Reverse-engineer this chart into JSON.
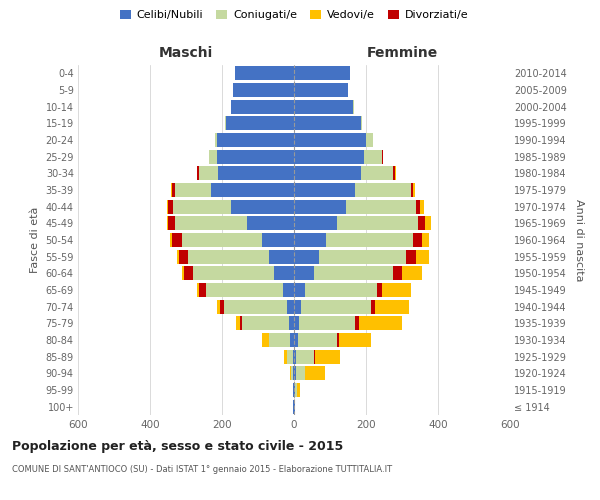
{
  "age_groups": [
    "100+",
    "95-99",
    "90-94",
    "85-89",
    "80-84",
    "75-79",
    "70-74",
    "65-69",
    "60-64",
    "55-59",
    "50-54",
    "45-49",
    "40-44",
    "35-39",
    "30-34",
    "25-29",
    "20-24",
    "15-19",
    "10-14",
    "5-9",
    "0-4"
  ],
  "birth_years": [
    "≤ 1914",
    "1915-1919",
    "1920-1924",
    "1925-1929",
    "1930-1934",
    "1935-1939",
    "1940-1944",
    "1945-1949",
    "1950-1954",
    "1955-1959",
    "1960-1964",
    "1965-1969",
    "1970-1974",
    "1975-1979",
    "1980-1984",
    "1985-1989",
    "1990-1994",
    "1995-1999",
    "2000-2004",
    "2005-2009",
    "2010-2014"
  ],
  "colors": {
    "celibi": "#4472c4",
    "coniugati": "#c5d9a0",
    "vedovi": "#ffc000",
    "divorziati": "#c00000"
  },
  "maschi": {
    "celibi": [
      2,
      2,
      2,
      4,
      10,
      15,
      20,
      30,
      55,
      70,
      90,
      130,
      175,
      230,
      210,
      215,
      215,
      190,
      175,
      170,
      165
    ],
    "coniugati": [
      0,
      0,
      5,
      15,
      60,
      130,
      175,
      215,
      225,
      225,
      220,
      200,
      160,
      100,
      55,
      20,
      5,
      2,
      0,
      0,
      0
    ],
    "vedovi": [
      0,
      0,
      5,
      10,
      20,
      10,
      10,
      5,
      5,
      5,
      5,
      2,
      2,
      2,
      0,
      0,
      0,
      0,
      0,
      0,
      0
    ],
    "divorziati": [
      0,
      0,
      0,
      0,
      0,
      5,
      10,
      20,
      25,
      25,
      30,
      20,
      15,
      10,
      5,
      2,
      0,
      0,
      0,
      0,
      0
    ]
  },
  "femmine": {
    "celibi": [
      2,
      2,
      5,
      5,
      10,
      15,
      20,
      30,
      55,
      70,
      90,
      120,
      145,
      170,
      185,
      195,
      200,
      185,
      165,
      150,
      155
    ],
    "coniugati": [
      0,
      5,
      25,
      50,
      110,
      155,
      195,
      200,
      220,
      240,
      240,
      225,
      195,
      155,
      90,
      50,
      20,
      5,
      2,
      0,
      0
    ],
    "vedovi": [
      2,
      10,
      55,
      70,
      90,
      120,
      95,
      80,
      55,
      35,
      20,
      15,
      10,
      5,
      2,
      0,
      0,
      0,
      0,
      0,
      0
    ],
    "divorziati": [
      0,
      0,
      0,
      2,
      5,
      10,
      10,
      15,
      25,
      30,
      25,
      20,
      10,
      5,
      5,
      2,
      0,
      0,
      0,
      0,
      0
    ]
  },
  "xlim": 600,
  "xlabel_left": "Maschi",
  "xlabel_right": "Femmine",
  "ylabel_left": "Fasce di età",
  "ylabel_right": "Anni di nascita",
  "title": "Popolazione per età, sesso e stato civile - 2015",
  "subtitle": "COMUNE DI SANT'ANTIOCO (SU) - Dati ISTAT 1° gennaio 2015 - Elaborazione TUTTITALIA.IT",
  "legend_labels": [
    "Celibi/Nubili",
    "Coniugati/e",
    "Vedovi/e",
    "Divorziati/e"
  ],
  "bg_color": "#ffffff",
  "grid_color": "#cccccc"
}
